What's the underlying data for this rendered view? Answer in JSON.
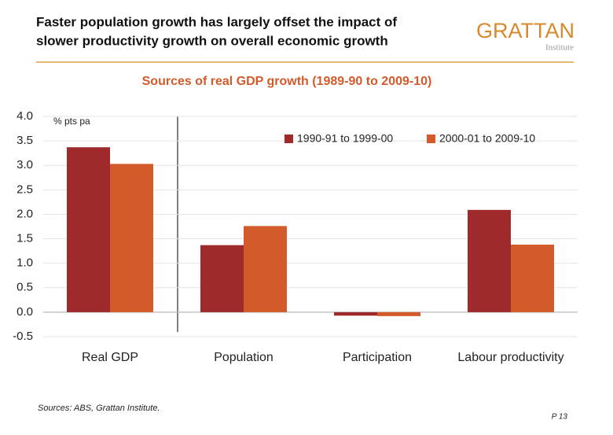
{
  "header": {
    "title_lines": [
      "Faster population growth has largely offset the impact of",
      "slower productivity growth on overall economic growth"
    ],
    "logo": "GRATTAN",
    "logo_sub": "Institute"
  },
  "chart_data": {
    "type": "bar",
    "title": "Sources of real GDP growth (1989-90 to 2009-10)",
    "y_label": "% pts pa",
    "categories": [
      "Real GDP",
      "Population",
      "Participation",
      "Labour productivity"
    ],
    "series": [
      {
        "name": "1990-91 to 1999-00",
        "color": "#9e2a2b",
        "values": [
          3.37,
          1.37,
          -0.07,
          2.09
        ]
      },
      {
        "name": "2000-01 to 2009-10",
        "color": "#d35a2a",
        "values": [
          3.03,
          1.76,
          -0.08,
          1.38
        ]
      }
    ],
    "ylim": [
      -0.5,
      4.0
    ],
    "yticks": [
      -0.5,
      {
        "value": 0,
        "label": "0.0"
      },
      0.5,
      {
        "value": 1,
        "label": "1.0"
      },
      1.5,
      {
        "value": 2,
        "label": "2.0"
      },
      2.5,
      {
        "value": 3,
        "label": "3.0"
      },
      3.5,
      {
        "value": 4,
        "label": "4.0"
      }
    ],
    "grid": true,
    "legend": "top-right"
  },
  "footer": {
    "source": "Sources: ABS, Grattan Institute.",
    "page": "P 13"
  }
}
